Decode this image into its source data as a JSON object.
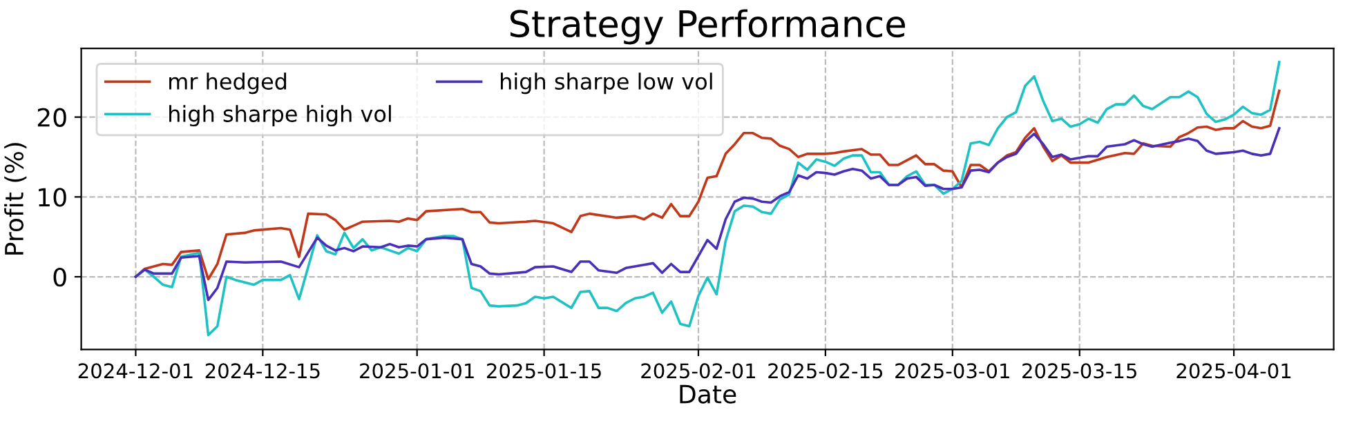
{
  "chart_data": {
    "type": "line",
    "title": "Strategy Performance",
    "xlabel": "Date",
    "ylabel": "Profit (%)",
    "xlim": [
      "2024-11-25",
      "2025-04-12"
    ],
    "ylim": [
      -9.1,
      28.6
    ],
    "yticks": [
      0,
      10,
      20
    ],
    "xticks": [
      "2024-12-01",
      "2024-12-15",
      "2025-01-01",
      "2025-01-15",
      "2025-02-01",
      "2025-02-15",
      "2025-03-01",
      "2025-03-15",
      "2025-04-01"
    ],
    "grid": true,
    "legend": "top left",
    "line_style": "solid",
    "marker": "none",
    "series": [
      {
        "name": "mr hedged",
        "color": "#c1391b",
        "x": [
          "2024-12-01",
          "2024-12-02",
          "2024-12-04",
          "2024-12-05",
          "2024-12-06",
          "2024-12-08",
          "2024-12-09",
          "2024-12-10",
          "2024-12-11",
          "2024-12-13",
          "2024-12-14",
          "2024-12-17",
          "2024-12-18",
          "2024-12-19",
          "2024-12-20",
          "2024-12-22",
          "2024-12-23",
          "2024-12-24",
          "2024-12-26",
          "2024-12-29",
          "2024-12-30",
          "2024-12-31",
          "2025-01-01",
          "2025-01-02",
          "2025-01-06",
          "2025-01-07",
          "2025-01-08",
          "2025-01-09",
          "2025-01-10",
          "2025-01-13",
          "2025-01-14",
          "2025-01-16",
          "2025-01-18",
          "2025-01-19",
          "2025-01-20",
          "2025-01-23",
          "2025-01-25",
          "2025-01-26",
          "2025-01-27",
          "2025-01-28",
          "2025-01-29",
          "2025-01-30",
          "2025-01-31",
          "2025-02-01",
          "2025-02-02",
          "2025-02-03",
          "2025-02-04",
          "2025-02-05",
          "2025-02-06",
          "2025-02-07",
          "2025-02-08",
          "2025-02-09",
          "2025-02-10",
          "2025-02-11",
          "2025-02-12",
          "2025-02-13",
          "2025-02-15",
          "2025-02-16",
          "2025-02-17",
          "2025-02-19",
          "2025-02-20",
          "2025-02-21",
          "2025-02-22",
          "2025-02-23",
          "2025-02-25",
          "2025-02-26",
          "2025-02-27",
          "2025-02-28",
          "2025-03-01",
          "2025-03-02",
          "2025-03-03",
          "2025-03-04",
          "2025-03-05",
          "2025-03-06",
          "2025-03-07",
          "2025-03-08",
          "2025-03-09",
          "2025-03-10",
          "2025-03-11",
          "2025-03-12",
          "2025-03-13",
          "2025-03-14",
          "2025-03-16",
          "2025-03-18",
          "2025-03-20",
          "2025-03-21",
          "2025-03-22",
          "2025-03-23",
          "2025-03-25",
          "2025-03-26",
          "2025-03-27",
          "2025-03-28",
          "2025-03-29",
          "2025-03-30",
          "2025-03-31",
          "2025-04-01",
          "2025-04-02",
          "2025-04-03",
          "2025-04-04",
          "2025-04-05",
          "2025-04-06"
        ],
        "values": [
          0.0,
          1.0,
          1.6,
          1.5,
          3.1,
          3.3,
          -0.3,
          1.6,
          5.3,
          5.5,
          5.8,
          6.1,
          5.9,
          2.5,
          7.9,
          7.8,
          7.1,
          5.9,
          6.9,
          7.0,
          6.9,
          7.3,
          7.1,
          8.2,
          8.5,
          8.1,
          8.1,
          6.8,
          6.7,
          6.9,
          7.0,
          6.7,
          5.6,
          7.6,
          7.9,
          7.4,
          7.6,
          7.2,
          7.9,
          7.4,
          9.1,
          7.6,
          7.6,
          9.4,
          12.4,
          12.6,
          15.4,
          16.6,
          18.0,
          18.0,
          17.4,
          17.3,
          16.4,
          16.0,
          15.0,
          15.4,
          15.4,
          15.5,
          15.7,
          16.0,
          15.3,
          15.3,
          14.0,
          14.0,
          15.2,
          14.1,
          14.1,
          13.3,
          13.2,
          11.2,
          14.0,
          14.0,
          13.2,
          14.3,
          15.2,
          15.6,
          17.4,
          18.6,
          16.3,
          14.5,
          15.2,
          14.3,
          14.3,
          15.0,
          15.5,
          15.4,
          16.7,
          16.4,
          16.3,
          17.5,
          18.0,
          18.7,
          18.8,
          18.4,
          18.6,
          18.6,
          19.5,
          18.8,
          18.6,
          18.9,
          23.3
        ]
      },
      {
        "name": "high sharpe high vol",
        "color": "#1fc2c2",
        "x": [
          "2024-12-01",
          "2024-12-02",
          "2024-12-03",
          "2024-12-04",
          "2024-12-05",
          "2024-12-06",
          "2024-12-08",
          "2024-12-09",
          "2024-12-10",
          "2024-12-11",
          "2024-12-12",
          "2024-12-14",
          "2024-12-15",
          "2024-12-17",
          "2024-12-18",
          "2024-12-19",
          "2024-12-21",
          "2024-12-22",
          "2024-12-23",
          "2024-12-24",
          "2024-12-25",
          "2024-12-26",
          "2024-12-27",
          "2024-12-28",
          "2024-12-29",
          "2024-12-30",
          "2024-12-31",
          "2025-01-01",
          "2025-01-02",
          "2025-01-04",
          "2025-01-05",
          "2025-01-06",
          "2025-01-07",
          "2025-01-08",
          "2025-01-09",
          "2025-01-10",
          "2025-01-12",
          "2025-01-13",
          "2025-01-14",
          "2025-01-15",
          "2025-01-16",
          "2025-01-18",
          "2025-01-19",
          "2025-01-20",
          "2025-01-21",
          "2025-01-22",
          "2025-01-23",
          "2025-01-24",
          "2025-01-25",
          "2025-01-26",
          "2025-01-27",
          "2025-01-28",
          "2025-01-29",
          "2025-01-30",
          "2025-01-31",
          "2025-02-01",
          "2025-02-02",
          "2025-02-03",
          "2025-02-04",
          "2025-02-05",
          "2025-02-06",
          "2025-02-07",
          "2025-02-08",
          "2025-02-09",
          "2025-02-10",
          "2025-02-11",
          "2025-02-12",
          "2025-02-13",
          "2025-02-14",
          "2025-02-15",
          "2025-02-16",
          "2025-02-17",
          "2025-02-18",
          "2025-02-19",
          "2025-02-20",
          "2025-02-21",
          "2025-02-22",
          "2025-02-23",
          "2025-02-24",
          "2025-02-25",
          "2025-02-26",
          "2025-02-27",
          "2025-02-28",
          "2025-03-01",
          "2025-03-02",
          "2025-03-03",
          "2025-03-04",
          "2025-03-05",
          "2025-03-06",
          "2025-03-07",
          "2025-03-08",
          "2025-03-09",
          "2025-03-10",
          "2025-03-11",
          "2025-03-12",
          "2025-03-13",
          "2025-03-14",
          "2025-03-15",
          "2025-03-16",
          "2025-03-17",
          "2025-03-18",
          "2025-03-19",
          "2025-03-20",
          "2025-03-21",
          "2025-03-22",
          "2025-03-23",
          "2025-03-25",
          "2025-03-26",
          "2025-03-27",
          "2025-03-28",
          "2025-03-29",
          "2025-03-30",
          "2025-03-31",
          "2025-04-01",
          "2025-04-02",
          "2025-04-03",
          "2025-04-04",
          "2025-04-05",
          "2025-04-06"
        ],
        "values": [
          0.0,
          0.9,
          0.0,
          -1.0,
          -1.3,
          2.5,
          3.0,
          -7.3,
          -6.2,
          0.0,
          -0.4,
          -1.0,
          -0.4,
          -0.4,
          0.2,
          -2.8,
          5.2,
          3.2,
          2.8,
          5.5,
          3.6,
          4.7,
          3.3,
          3.7,
          3.3,
          2.9,
          3.6,
          3.2,
          4.7,
          5.1,
          5.1,
          4.7,
          -1.4,
          -1.8,
          -3.6,
          -3.7,
          -3.6,
          -3.3,
          -2.5,
          -2.7,
          -2.5,
          -3.9,
          -1.9,
          -1.8,
          -3.9,
          -3.9,
          -4.3,
          -3.3,
          -2.7,
          -2.5,
          -2.0,
          -4.5,
          -3.1,
          -5.9,
          -6.2,
          -2.4,
          -0.1,
          -2.2,
          4.5,
          8.2,
          8.9,
          8.8,
          8.1,
          7.9,
          9.7,
          10.3,
          14.3,
          13.4,
          14.7,
          14.4,
          13.9,
          14.8,
          15.2,
          15.2,
          13.1,
          13.1,
          11.5,
          11.5,
          12.6,
          13.2,
          11.5,
          11.5,
          10.4,
          11.0,
          12.0,
          16.7,
          16.9,
          16.5,
          18.6,
          20.0,
          20.6,
          23.9,
          25.1,
          22.0,
          19.5,
          19.8,
          18.8,
          19.1,
          19.8,
          19.3,
          21.0,
          21.6,
          21.6,
          22.7,
          21.4,
          21.0,
          22.5,
          22.5,
          23.2,
          22.5,
          20.4,
          19.4,
          19.7,
          20.3,
          21.3,
          20.5,
          20.3,
          20.9,
          26.9
        ]
      },
      {
        "name": "high sharpe low vol",
        "color": "#4a2fb8",
        "x": [
          "2024-12-01",
          "2024-12-02",
          "2024-12-03",
          "2024-12-05",
          "2024-12-06",
          "2024-12-08",
          "2024-12-09",
          "2024-12-10",
          "2024-12-11",
          "2024-12-13",
          "2024-12-17",
          "2024-12-19",
          "2024-12-21",
          "2024-12-22",
          "2024-12-23",
          "2024-12-24",
          "2024-12-25",
          "2024-12-26",
          "2024-12-28",
          "2024-12-29",
          "2024-12-30",
          "2024-12-31",
          "2025-01-01",
          "2025-01-02",
          "2025-01-04",
          "2025-01-06",
          "2025-01-07",
          "2025-01-08",
          "2025-01-09",
          "2025-01-10",
          "2025-01-13",
          "2025-01-14",
          "2025-01-16",
          "2025-01-18",
          "2025-01-19",
          "2025-01-20",
          "2025-01-21",
          "2025-01-23",
          "2025-01-24",
          "2025-01-26",
          "2025-01-27",
          "2025-01-28",
          "2025-01-29",
          "2025-01-30",
          "2025-01-31",
          "2025-02-02",
          "2025-02-03",
          "2025-02-04",
          "2025-02-05",
          "2025-02-06",
          "2025-02-07",
          "2025-02-08",
          "2025-02-09",
          "2025-02-10",
          "2025-02-11",
          "2025-02-12",
          "2025-02-13",
          "2025-02-14",
          "2025-02-15",
          "2025-02-16",
          "2025-02-17",
          "2025-02-18",
          "2025-02-19",
          "2025-02-20",
          "2025-02-21",
          "2025-02-22",
          "2025-02-23",
          "2025-02-24",
          "2025-02-25",
          "2025-02-26",
          "2025-02-27",
          "2025-02-28",
          "2025-03-01",
          "2025-03-02",
          "2025-03-03",
          "2025-03-04",
          "2025-03-05",
          "2025-03-06",
          "2025-03-07",
          "2025-03-08",
          "2025-03-09",
          "2025-03-10",
          "2025-03-11",
          "2025-03-12",
          "2025-03-13",
          "2025-03-14",
          "2025-03-16",
          "2025-03-17",
          "2025-03-18",
          "2025-03-20",
          "2025-03-21",
          "2025-03-22",
          "2025-03-23",
          "2025-03-25",
          "2025-03-26",
          "2025-03-27",
          "2025-03-28",
          "2025-03-29",
          "2025-03-30",
          "2025-04-01",
          "2025-04-02",
          "2025-04-03",
          "2025-04-04",
          "2025-04-05",
          "2025-04-06"
        ],
        "values": [
          0.0,
          0.9,
          0.4,
          0.4,
          2.4,
          2.6,
          -2.9,
          -1.4,
          1.9,
          1.8,
          1.9,
          1.2,
          4.9,
          3.9,
          3.3,
          3.6,
          3.2,
          3.8,
          3.7,
          4.1,
          3.7,
          3.9,
          3.8,
          4.7,
          4.9,
          4.7,
          1.6,
          1.3,
          0.4,
          0.3,
          0.6,
          1.2,
          1.3,
          0.6,
          1.9,
          1.9,
          0.8,
          0.5,
          1.1,
          1.5,
          1.7,
          0.5,
          1.6,
          0.6,
          0.6,
          4.6,
          3.5,
          7.2,
          9.4,
          9.9,
          9.8,
          9.4,
          9.3,
          10.1,
          10.6,
          12.7,
          12.3,
          13.1,
          13.0,
          12.8,
          13.2,
          13.5,
          13.3,
          12.3,
          12.6,
          11.5,
          11.5,
          12.3,
          12.5,
          11.4,
          11.5,
          11.0,
          11.0,
          11.2,
          13.3,
          13.4,
          13.1,
          14.3,
          15.0,
          15.4,
          16.9,
          17.9,
          16.6,
          15.0,
          15.3,
          14.7,
          15.1,
          15.1,
          16.3,
          16.6,
          17.1,
          16.6,
          16.3,
          16.8,
          17.0,
          17.3,
          17.0,
          15.8,
          15.4,
          15.6,
          15.8,
          15.4,
          15.2,
          15.4,
          18.6
        ]
      }
    ]
  }
}
